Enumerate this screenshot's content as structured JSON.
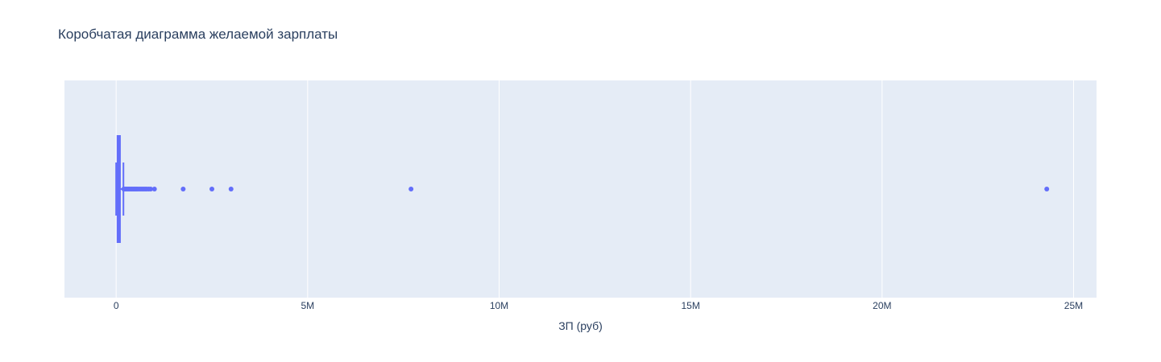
{
  "chart_data": {
    "type": "box",
    "title": "Коробчатая диаграмма желаемой зарплаты",
    "xlabel": "ЗП (руб)",
    "ylabel": "",
    "orientation": "horizontal",
    "xlim": [
      -1350000,
      25600000
    ],
    "xticks": [
      {
        "value": 0,
        "label": "0"
      },
      {
        "value": 5000000,
        "label": "5M"
      },
      {
        "value": 10000000,
        "label": "10M"
      },
      {
        "value": 15000000,
        "label": "15M"
      },
      {
        "value": 20000000,
        "label": "20M"
      },
      {
        "value": 25000000,
        "label": "25M"
      }
    ],
    "grid": true,
    "legend": "none",
    "colors": {
      "plot_background": "#e5ecf6",
      "grid": "#ffffff",
      "series": "#636efa",
      "text": "#2a3f5f"
    },
    "series": [
      {
        "box": {
          "lower_fence": 0,
          "q1": 35000,
          "median": 70000,
          "q3": 100000,
          "upper_fence": 190000
        },
        "outliers": [
          200000,
          230000,
          260000,
          290000,
          320000,
          350000,
          380000,
          410000,
          440000,
          470000,
          500000,
          530000,
          560000,
          600000,
          640000,
          680000,
          720000,
          760000,
          800000,
          850000,
          900000,
          1000000,
          1750000,
          2500000,
          3000000,
          7700000,
          24300000
        ]
      }
    ]
  }
}
